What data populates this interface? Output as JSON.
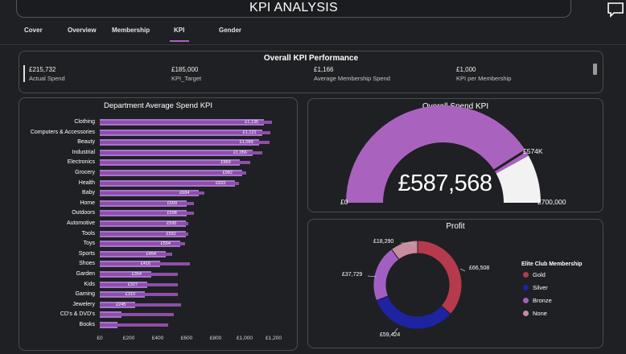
{
  "header": {
    "title": "KPI ANALYSIS"
  },
  "tabs": [
    {
      "label": "Cover"
    },
    {
      "label": "Overview"
    },
    {
      "label": "Membership"
    },
    {
      "label": "KPI",
      "active": true
    },
    {
      "label": "Gender"
    }
  ],
  "kpi_strip": {
    "title": "Overall KPI Performance",
    "items": [
      {
        "value": "£215,732",
        "label": "Actual Spend"
      },
      {
        "value": "£185,000",
        "label": "KPI_Target"
      },
      {
        "value": "£1,166",
        "label": "Average Membership Spend"
      },
      {
        "value": "£1,000",
        "label": "KPI per Membership"
      }
    ]
  },
  "colors": {
    "accent": "#a963bf",
    "bar_actual": "#a775cf",
    "bar_target": "#8e4ea9",
    "gauge_fill": "#a963bf",
    "gauge_rest": "#f2f2f2",
    "gold": "#b53a4c",
    "silver": "#1e23a1",
    "bronze": "#a25fc3",
    "none": "#c88ba0"
  },
  "chart_data": [
    {
      "type": "bar",
      "title": "Department Average Spend KPI",
      "orientation": "horizontal",
      "categories": [
        "Clothing",
        "Computers & Accessories",
        "Beauty",
        "Industrial",
        "Electronics",
        "Grocery",
        "Health",
        "Baby",
        "Home",
        "Outdoors",
        "Automotive",
        "Tools",
        "Toys",
        "Sports",
        "Shoes",
        "Garden",
        "Kids",
        "Gaming",
        "Jewelery",
        "CD's & DVD's",
        "Books"
      ],
      "series": [
        {
          "name": "Actual",
          "values": [
            1135,
            1121,
            1099,
            1056,
            969,
            982,
            933,
            684,
            599,
            598,
            595,
            592,
            554,
            454,
            416,
            354,
            327,
            310,
            245,
            150,
            120
          ],
          "labels": [
            "£1,135",
            "£1,121",
            "£1,099",
            "£1,056",
            "£969",
            "£982",
            "£933",
            "£684",
            "£599",
            "£598",
            "£595",
            "£592",
            "£554",
            "£454",
            "£416",
            "£354",
            "£327",
            "£310",
            "£245",
            "",
            ""
          ]
        },
        {
          "name": "Target",
          "values": [
            1190,
            1180,
            1170,
            1120,
            1040,
            1010,
            960,
            720,
            650,
            650,
            610,
            610,
            590,
            500,
            620,
            540,
            540,
            540,
            560,
            510,
            470
          ]
        }
      ],
      "xlim": [
        0,
        1200
      ],
      "xticks": [
        "£0",
        "£200",
        "£400",
        "£600",
        "£800",
        "£1,000",
        "£1,200"
      ]
    },
    {
      "type": "gauge",
      "title": "Overall Spend KPI",
      "value": 587568,
      "value_label": "£587,568",
      "min": 0,
      "min_label": "£0",
      "max": 700000,
      "max_label": "£700,000",
      "target": 574000,
      "target_label": "£574K"
    },
    {
      "type": "pie",
      "title": "Profit",
      "legend_title": "Elite Club Membership",
      "categories": [
        "Gold",
        "Silver",
        "Bronze",
        "None"
      ],
      "values": [
        66508,
        59424,
        37729,
        18290
      ],
      "labels": [
        "£66,508",
        "£59,424",
        "£37,729",
        "£18,290"
      ]
    }
  ]
}
